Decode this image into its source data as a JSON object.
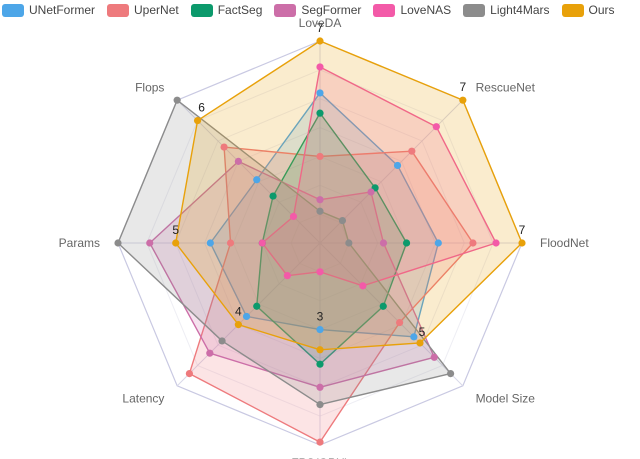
{
  "chart_data": {
    "type": "radar",
    "title": "",
    "axes": [
      "LoveDA",
      "RescueNet",
      "FloodNet",
      "Model Size",
      "FPS(GPU)",
      "Latency",
      "Params",
      "Flops"
    ],
    "range": [
      0,
      7
    ],
    "scale_labels": [
      {
        "axis": "LoveDA",
        "value": 7,
        "text": "7"
      },
      {
        "axis": "RescueNet",
        "value": 7,
        "text": "7"
      },
      {
        "axis": "FloodNet",
        "value": 7,
        "text": "7"
      },
      {
        "axis": "Model Size",
        "value": 5,
        "text": "5"
      },
      {
        "axis": "FPS(GPU)",
        "value": 3,
        "text": "3"
      },
      {
        "axis": "Latency",
        "value": 4,
        "text": "4"
      },
      {
        "axis": "Params",
        "value": 5,
        "text": "5"
      },
      {
        "axis": "Flops",
        "value": 6,
        "text": "6"
      }
    ],
    "series": [
      {
        "name": "UNetFormer",
        "color": "#4da6e8",
        "values": [
          5.2,
          3.8,
          4.1,
          4.6,
          3.0,
          3.6,
          3.8,
          3.1
        ]
      },
      {
        "name": "UperNet",
        "color": "#ee7a7d",
        "values": [
          3.0,
          4.5,
          5.3,
          3.9,
          6.9,
          6.4,
          3.1,
          4.7
        ]
      },
      {
        "name": "FactSeg",
        "color": "#0c9a6c",
        "values": [
          4.5,
          2.7,
          3.0,
          3.1,
          4.2,
          3.1,
          2.0,
          2.3
        ]
      },
      {
        "name": "SegFormer",
        "color": "#cc6ea8",
        "values": [
          1.5,
          2.5,
          2.2,
          5.6,
          5.0,
          5.4,
          5.9,
          4.0
        ]
      },
      {
        "name": "LoveNAS",
        "color": "#f35aa8",
        "values": [
          6.1,
          5.7,
          6.1,
          2.1,
          1.0,
          1.6,
          2.0,
          1.3
        ]
      },
      {
        "name": "Light4Mars",
        "color": "#8c8c8c",
        "values": [
          1.1,
          1.1,
          1.0,
          6.4,
          5.6,
          4.8,
          7.0,
          7.0
        ]
      },
      {
        "name": "Ours",
        "color": "#e8a10a",
        "values": [
          7.0,
          7.0,
          7.0,
          4.9,
          3.7,
          4.0,
          5.0,
          6.0
        ]
      }
    ],
    "grid": true,
    "legend_position": "top"
  }
}
